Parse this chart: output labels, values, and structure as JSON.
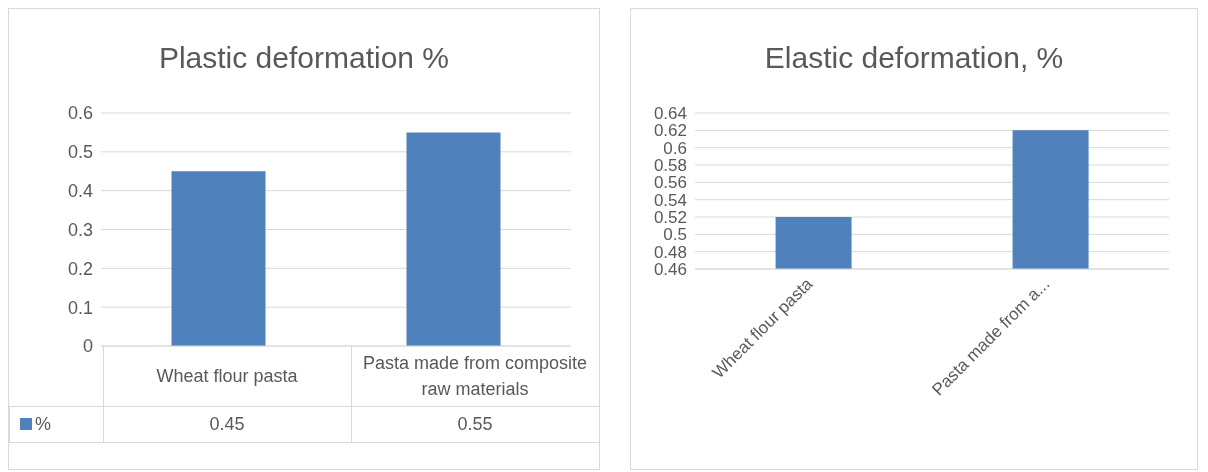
{
  "chart_data": [
    {
      "type": "bar",
      "title": "Plastic deformation %",
      "categories": [
        "Wheat flour pasta",
        "Pasta made from composite raw materials"
      ],
      "series": [
        {
          "name": "%",
          "color": "#4f81bd",
          "values": [
            0.45,
            0.55
          ]
        }
      ],
      "ylim": [
        0,
        0.6
      ],
      "yticks": [
        0,
        0.1,
        0.2,
        0.3,
        0.4,
        0.5,
        0.6
      ],
      "grid": "y",
      "legend": "bottom",
      "data_labels": true
    },
    {
      "type": "bar",
      "title": "Elastic deformation, %",
      "categories": [
        "Wheat flour pasta",
        "Pasta made from a..."
      ],
      "values": [
        0.52,
        0.62
      ],
      "color": "#4f81bd",
      "ylim": [
        0.46,
        0.64
      ],
      "yticks": [
        0.46,
        0.48,
        0.5,
        0.52,
        0.54,
        0.56,
        0.58,
        0.6,
        0.62,
        0.64
      ],
      "grid": "y"
    }
  ]
}
